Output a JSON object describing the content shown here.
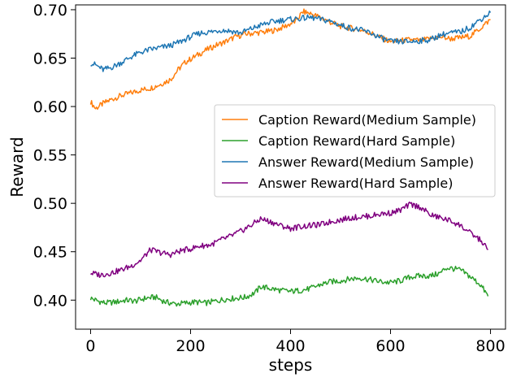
{
  "chart_data": {
    "type": "line",
    "title": "",
    "xlabel": "steps",
    "ylabel": "Reward",
    "xlim": [
      -30,
      830
    ],
    "ylim": [
      0.37,
      0.705
    ],
    "xticks": [
      0,
      200,
      400,
      600,
      800
    ],
    "xtick_labels": [
      "0",
      "200",
      "400",
      "600",
      "800"
    ],
    "yticks": [
      0.4,
      0.45,
      0.5,
      0.55,
      0.6,
      0.65,
      0.7
    ],
    "ytick_labels": [
      "0.40",
      "0.45",
      "0.50",
      "0.55",
      "0.60",
      "0.65",
      "0.70"
    ],
    "grid": false,
    "legend_position": "center-right",
    "series": [
      {
        "name": "Caption Reward(Medium Sample)",
        "color": "#ff7f0e",
        "x": [
          0,
          10,
          25,
          40,
          60,
          80,
          100,
          120,
          140,
          160,
          175,
          190,
          210,
          230,
          250,
          270,
          290,
          310,
          330,
          350,
          370,
          390,
          410,
          425,
          440,
          460,
          480,
          500,
          520,
          540,
          560,
          580,
          600,
          620,
          640,
          660,
          680,
          700,
          720,
          740,
          760,
          780,
          800
        ],
        "y": [
          0.605,
          0.598,
          0.603,
          0.607,
          0.611,
          0.614,
          0.617,
          0.619,
          0.623,
          0.628,
          0.638,
          0.646,
          0.652,
          0.658,
          0.663,
          0.667,
          0.672,
          0.675,
          0.676,
          0.677,
          0.679,
          0.683,
          0.688,
          0.698,
          0.696,
          0.692,
          0.687,
          0.683,
          0.681,
          0.679,
          0.676,
          0.671,
          0.667,
          0.668,
          0.669,
          0.668,
          0.67,
          0.672,
          0.67,
          0.671,
          0.673,
          0.681,
          0.69
        ]
      },
      {
        "name": "Caption Reward(Hard Sample)",
        "color": "#2ca02c",
        "x": [
          0,
          15,
          30,
          50,
          70,
          90,
          110,
          130,
          150,
          170,
          190,
          210,
          230,
          250,
          270,
          290,
          310,
          330,
          340,
          360,
          380,
          400,
          420,
          440,
          460,
          480,
          500,
          520,
          540,
          560,
          580,
          600,
          620,
          640,
          660,
          680,
          700,
          710,
          720,
          740,
          760,
          780,
          795
        ],
        "y": [
          0.402,
          0.399,
          0.397,
          0.398,
          0.4,
          0.399,
          0.402,
          0.403,
          0.398,
          0.396,
          0.397,
          0.398,
          0.397,
          0.399,
          0.401,
          0.402,
          0.403,
          0.408,
          0.414,
          0.412,
          0.41,
          0.409,
          0.41,
          0.412,
          0.416,
          0.419,
          0.42,
          0.422,
          0.423,
          0.421,
          0.419,
          0.418,
          0.42,
          0.424,
          0.425,
          0.425,
          0.428,
          0.433,
          0.433,
          0.431,
          0.424,
          0.416,
          0.404
        ]
      },
      {
        "name": "Answer Reward(Medium Sample)",
        "color": "#1f77b4",
        "x": [
          0,
          10,
          25,
          40,
          60,
          80,
          100,
          120,
          140,
          160,
          180,
          200,
          220,
          240,
          260,
          280,
          300,
          320,
          340,
          360,
          380,
          400,
          420,
          440,
          460,
          480,
          500,
          520,
          540,
          560,
          580,
          600,
          620,
          640,
          660,
          680,
          700,
          720,
          740,
          760,
          780,
          800
        ],
        "y": [
          0.645,
          0.643,
          0.638,
          0.64,
          0.645,
          0.651,
          0.656,
          0.659,
          0.661,
          0.663,
          0.667,
          0.672,
          0.676,
          0.677,
          0.679,
          0.678,
          0.676,
          0.68,
          0.684,
          0.687,
          0.689,
          0.69,
          0.691,
          0.692,
          0.69,
          0.688,
          0.684,
          0.681,
          0.679,
          0.676,
          0.671,
          0.667,
          0.667,
          0.667,
          0.668,
          0.669,
          0.674,
          0.676,
          0.677,
          0.682,
          0.69,
          0.697
        ]
      },
      {
        "name": "Answer Reward(Hard Sample)",
        "color": "#800080",
        "x": [
          0,
          20,
          40,
          60,
          80,
          100,
          120,
          140,
          160,
          180,
          200,
          220,
          240,
          260,
          280,
          300,
          320,
          340,
          360,
          380,
          400,
          420,
          440,
          460,
          480,
          500,
          520,
          540,
          560,
          580,
          600,
          620,
          640,
          660,
          680,
          700,
          720,
          740,
          760,
          780,
          795
        ],
        "y": [
          0.428,
          0.426,
          0.428,
          0.431,
          0.435,
          0.441,
          0.452,
          0.449,
          0.447,
          0.451,
          0.453,
          0.456,
          0.457,
          0.462,
          0.466,
          0.471,
          0.477,
          0.484,
          0.481,
          0.477,
          0.474,
          0.476,
          0.477,
          0.478,
          0.481,
          0.483,
          0.485,
          0.486,
          0.487,
          0.489,
          0.49,
          0.493,
          0.499,
          0.496,
          0.488,
          0.485,
          0.482,
          0.477,
          0.469,
          0.462,
          0.452
        ]
      }
    ]
  }
}
